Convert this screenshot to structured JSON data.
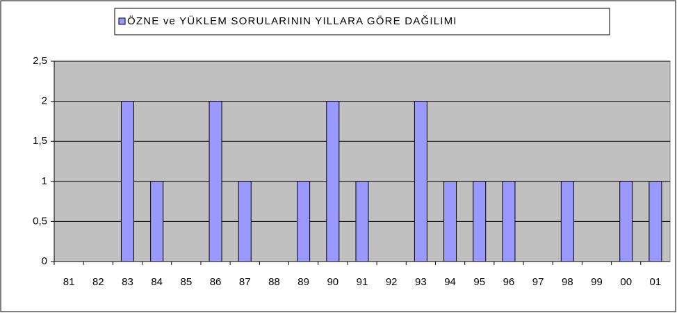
{
  "chart_data": {
    "type": "bar",
    "categories": [
      "81",
      "82",
      "83",
      "84",
      "85",
      "86",
      "87",
      "88",
      "89",
      "90",
      "91",
      "92",
      "93",
      "94",
      "95",
      "96",
      "97",
      "98",
      "99",
      "00",
      "01"
    ],
    "series": [
      {
        "name": "ÖZNE ve YÜKLEM SORULARININ YILLARA GÖRE DAĞILIMI",
        "color": "#9999ff",
        "values": [
          0,
          0,
          2,
          1,
          0,
          2,
          1,
          0,
          1,
          2,
          1,
          0,
          2,
          1,
          1,
          1,
          0,
          1,
          0,
          1,
          1
        ]
      }
    ],
    "ylim": [
      0,
      2.5
    ],
    "yticks": [
      0,
      {
        "value": 0.5,
        "label": "0,5"
      },
      1,
      {
        "value": 1.5,
        "label": "1,5"
      },
      2,
      {
        "value": 2.5,
        "label": "2,5"
      }
    ],
    "grid": true,
    "legend": "top"
  }
}
